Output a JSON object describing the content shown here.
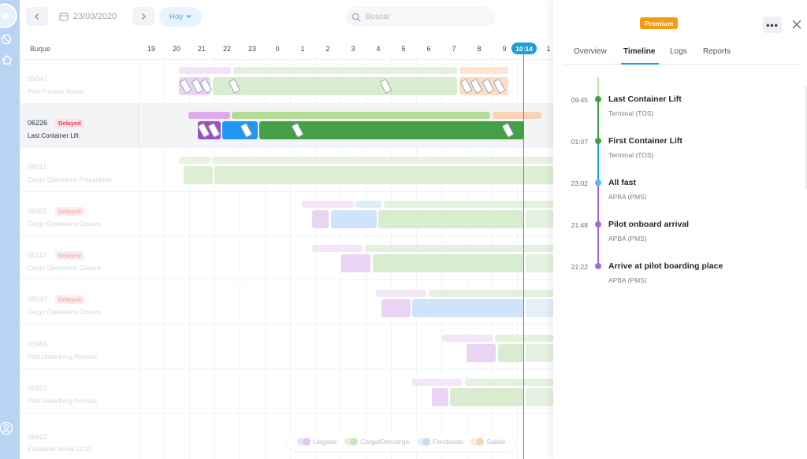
{
  "toolbar": {
    "date": "23/03/2020",
    "today_label": "Hoy",
    "search_placeholder": "Buscar"
  },
  "grid": {
    "vessel_header": "Buque",
    "hours": [
      "19",
      "20",
      "21",
      "22",
      "23",
      "0",
      "1",
      "2",
      "3",
      "4",
      "5",
      "6",
      "7",
      "8",
      "9",
      "1"
    ],
    "now_time": "10:14"
  },
  "rows": [
    {
      "id": "05047",
      "status": "",
      "description": "Pilot Process Arrival"
    },
    {
      "id": "06226",
      "status": "Delayed",
      "description": "Last Container Lift"
    },
    {
      "id": "06011",
      "status": "",
      "description": "Cargo Operations Preparation"
    },
    {
      "id": "06002",
      "status": "Delayed",
      "description": "Cargo Operations Closure"
    },
    {
      "id": "06112",
      "status": "Delayed",
      "description": "Cargo Operations Closure"
    },
    {
      "id": "05047",
      "status": "Delayed",
      "description": "Cargo Operations Closure"
    },
    {
      "id": "05984",
      "status": "",
      "description": "Pilot Unberthing Process"
    },
    {
      "id": "06422",
      "status": "",
      "description": "Pilot Unberthing Process"
    },
    {
      "id": "06422",
      "status": "",
      "description": "Estimated arrival 12:11"
    }
  ],
  "legend": [
    {
      "label": "Llegada",
      "color": "#d6a8ea"
    },
    {
      "label": "Carga/Descarga",
      "color": "#a9d58f"
    },
    {
      "label": "Fondeado",
      "color": "#9cc8f2"
    },
    {
      "label": "Salida",
      "color": "#f5c39a"
    }
  ],
  "panel": {
    "premium_label": "Premium",
    "tabs": [
      "Overview",
      "Timeline",
      "Logs",
      "Reports"
    ],
    "active_tab": "Timeline",
    "events": [
      {
        "time": "09:45",
        "title": "Last Container Lift",
        "source": "Terminal (TOS)",
        "color": "#43a047"
      },
      {
        "time": "01:07",
        "title": "First Container Lift",
        "source": "Terminal (TOS)",
        "color": "#43a047"
      },
      {
        "time": "23:02",
        "title": "All fast",
        "source": "APBA (PMS)",
        "color": "#42a5f5"
      },
      {
        "time": "21:48",
        "title": "Pilot onboard arrival",
        "source": "APBA (PMS)",
        "color": "#a569d6"
      },
      {
        "time": "21:22",
        "title": "Arrive at pilot boarding place",
        "source": "APBA (PMS)",
        "color": "#a569d6"
      }
    ]
  },
  "colors": {
    "accent": "#1e9ed8",
    "arrival": "#a569d6",
    "cargo": "#43a047",
    "anchored": "#2196f3",
    "departure": "#f5c39a",
    "premium": "#f39c12",
    "delayed": "#e0414f"
  },
  "icons": [
    "app-logo-icon",
    "no-entry-icon",
    "home-icon",
    "user-icon",
    "calendar-icon",
    "chevron-left-icon",
    "chevron-right-icon",
    "caret-down-icon",
    "search-icon",
    "more-icon",
    "close-icon"
  ]
}
